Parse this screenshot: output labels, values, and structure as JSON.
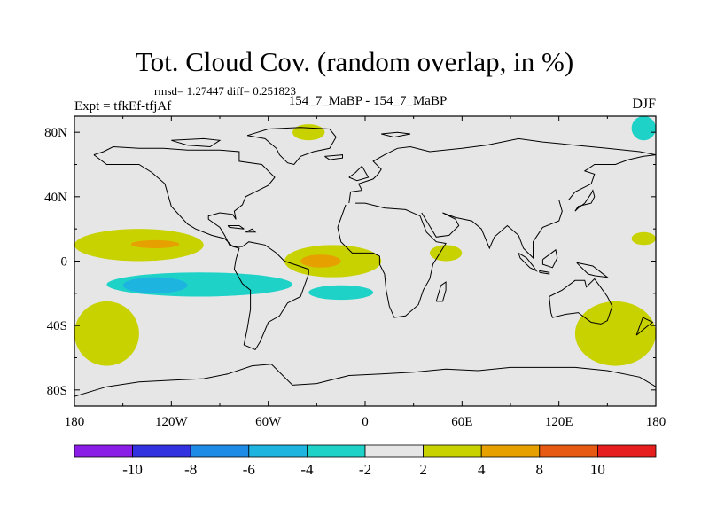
{
  "chart_data": {
    "type": "heatmap",
    "title": "Tot. Cloud Cov. (random overlap, in %)",
    "stats_line": "rmsd= 1.27447 diff= 0.251823",
    "left_label": "Expt = tfkEf-tfjAf",
    "center_label": "154_7_MaBP - 154_7_MaBP",
    "right_label": "DJF",
    "x_ticks": [
      {
        "lon": -180,
        "label": "180"
      },
      {
        "lon": -120,
        "label": "120W"
      },
      {
        "lon": -60,
        "label": "60W"
      },
      {
        "lon": 0,
        "label": "0"
      },
      {
        "lon": 60,
        "label": "60E"
      },
      {
        "lon": 120,
        "label": "120E"
      },
      {
        "lon": 180,
        "label": "180"
      }
    ],
    "y_ticks": [
      {
        "lat": 80,
        "label": "80N"
      },
      {
        "lat": 40,
        "label": "40N"
      },
      {
        "lat": 0,
        "label": "0"
      },
      {
        "lat": -40,
        "label": "40S"
      },
      {
        "lat": -80,
        "label": "80S"
      }
    ],
    "xlim": [
      -180,
      180
    ],
    "ylim": [
      -90,
      90
    ],
    "colorbar": {
      "levels": [
        "-10",
        "-8",
        "-6",
        "-4",
        "-2",
        "2",
        "4",
        "8",
        "10"
      ],
      "colors": [
        "#8a1ee6",
        "#3232e0",
        "#1e8ce6",
        "#1eb4e0",
        "#1ed2c8",
        "#e6e6e6",
        "#c8d200",
        "#e6a000",
        "#e65a14",
        "#e61e1e"
      ]
    },
    "missing_color": "#e6e6e6",
    "regions": [
      {
        "level": "2 to 4",
        "color": "#c8d200",
        "lon_range": [
          -180,
          -100
        ],
        "lat_range": [
          0,
          20
        ],
        "note": "tropical N Pacific band"
      },
      {
        "level": "4 to 8",
        "color": "#e6a000",
        "lon_range": [
          -145,
          -115
        ],
        "lat_range": [
          8,
          13
        ]
      },
      {
        "level": "-4 to -2",
        "color": "#1ed2c8",
        "lon_range": [
          -160,
          -45
        ],
        "lat_range": [
          -22,
          -7
        ]
      },
      {
        "level": "-6 to -4",
        "color": "#1eb4e0",
        "lon_range": [
          -150,
          -110
        ],
        "lat_range": [
          -20,
          -10
        ]
      },
      {
        "level": "2 to 4",
        "color": "#c8d200",
        "lon_range": [
          -50,
          10
        ],
        "lat_range": [
          -10,
          10
        ],
        "note": "tropical Atlantic"
      },
      {
        "level": "4 to 8",
        "color": "#e6a000",
        "lon_range": [
          -40,
          -15
        ],
        "lat_range": [
          -4,
          4
        ]
      },
      {
        "level": "-4 to -2",
        "color": "#1ed2c8",
        "lon_range": [
          -35,
          5
        ],
        "lat_range": [
          -24,
          -15
        ]
      },
      {
        "level": "2 to 4",
        "color": "#c8d200",
        "lon_range": [
          -45,
          -25
        ],
        "lat_range": [
          75,
          85
        ],
        "note": "Greenland"
      },
      {
        "level": "-4 to -2",
        "color": "#1ed2c8",
        "lon_range": [
          165,
          180
        ],
        "lat_range": [
          75,
          90
        ],
        "note": "Arctic NE corner"
      },
      {
        "level": "2 to 4",
        "color": "#c8d200",
        "lon_range": [
          -180,
          -140
        ],
        "lat_range": [
          -65,
          -25
        ],
        "note": "S Pacific west"
      },
      {
        "level": "2 to 4",
        "color": "#c8d200",
        "lon_range": [
          130,
          180
        ],
        "lat_range": [
          -65,
          -25
        ],
        "note": "S Pacific east"
      },
      {
        "level": "2 to 4",
        "color": "#c8d200",
        "lon_range": [
          165,
          180
        ],
        "lat_range": [
          10,
          18
        ]
      },
      {
        "level": "2 to 4",
        "color": "#c8d200",
        "lon_range": [
          40,
          60
        ],
        "lat_range": [
          0,
          10
        ]
      }
    ],
    "grid": false
  }
}
